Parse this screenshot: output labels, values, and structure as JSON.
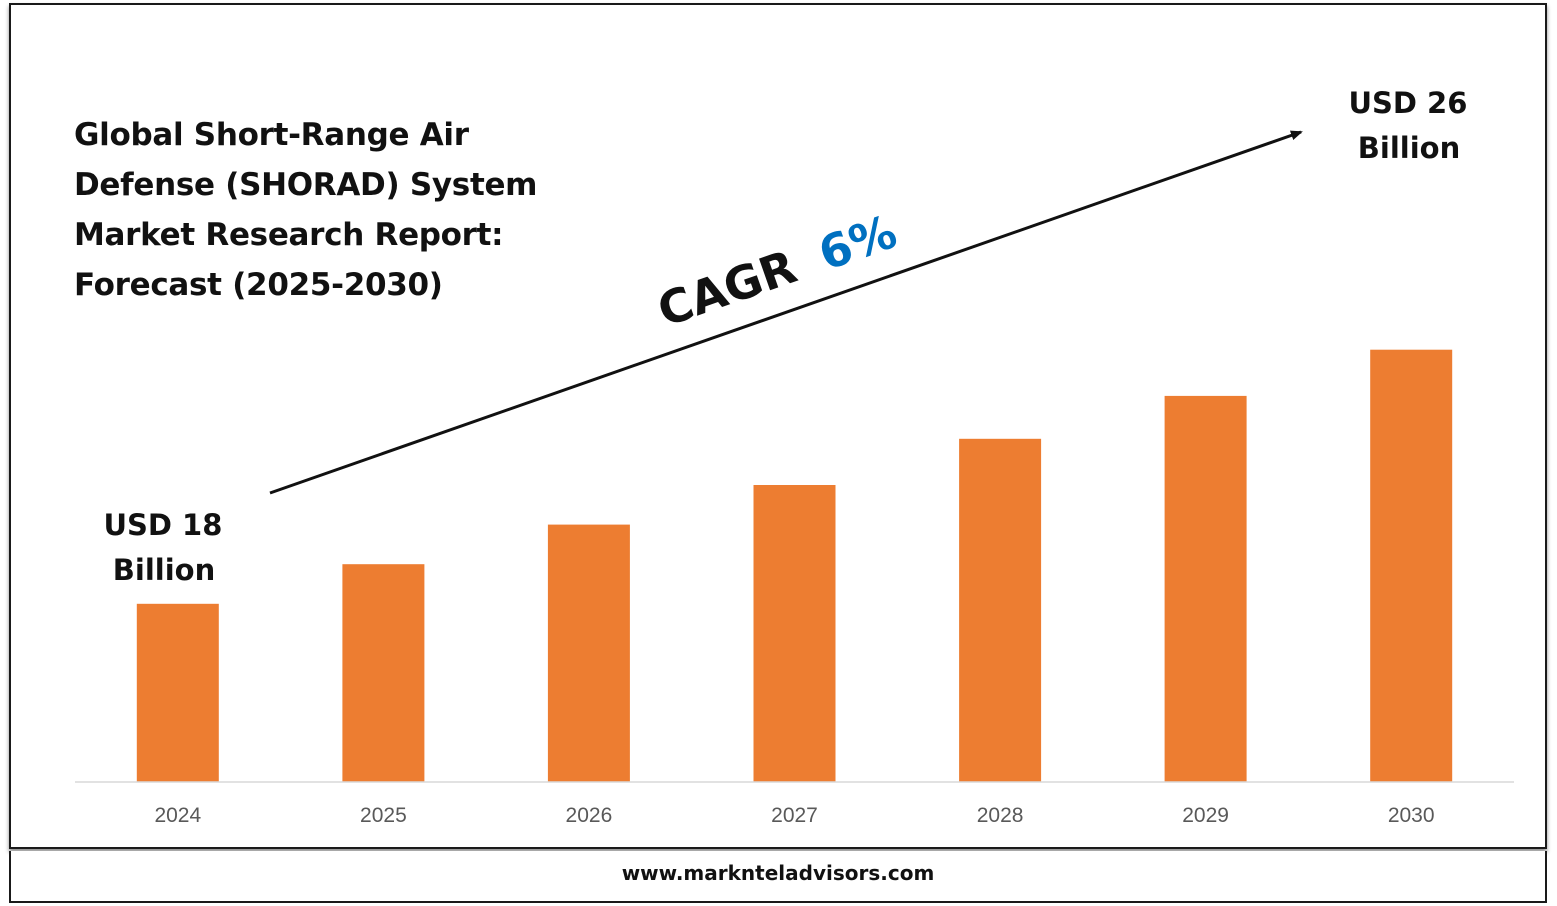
{
  "title": "Global Short-Range Air Defense (SHORAD) System Market Research Report: Forecast (2025-2030)",
  "cagr": {
    "label": "CAGR",
    "value": "6%"
  },
  "start_label": {
    "line1": "USD 18",
    "line2": "Billion"
  },
  "end_label": {
    "line1": "USD 26",
    "line2": "Billion"
  },
  "footer": {
    "url": "www.marknteladvisors.com"
  },
  "colors": {
    "bar": "#ED7D31",
    "cagr_value": "#0070C0",
    "text": "#111111",
    "axis": "#d9d9d9",
    "tick_text": "#595959"
  },
  "chart_data": {
    "type": "bar",
    "title": "Global Short-Range Air Defense (SHORAD) System Market Research Report: Forecast (2025-2030)",
    "categories": [
      "2024",
      "2025",
      "2026",
      "2027",
      "2028",
      "2029",
      "2030"
    ],
    "values": [
      18,
      19.2,
      20.4,
      21.6,
      23,
      24.3,
      25.7
    ],
    "unit": "USD Billion",
    "xlabel": "",
    "ylabel": "",
    "ylim": [
      0,
      28
    ],
    "grid": false,
    "legend": "none"
  }
}
